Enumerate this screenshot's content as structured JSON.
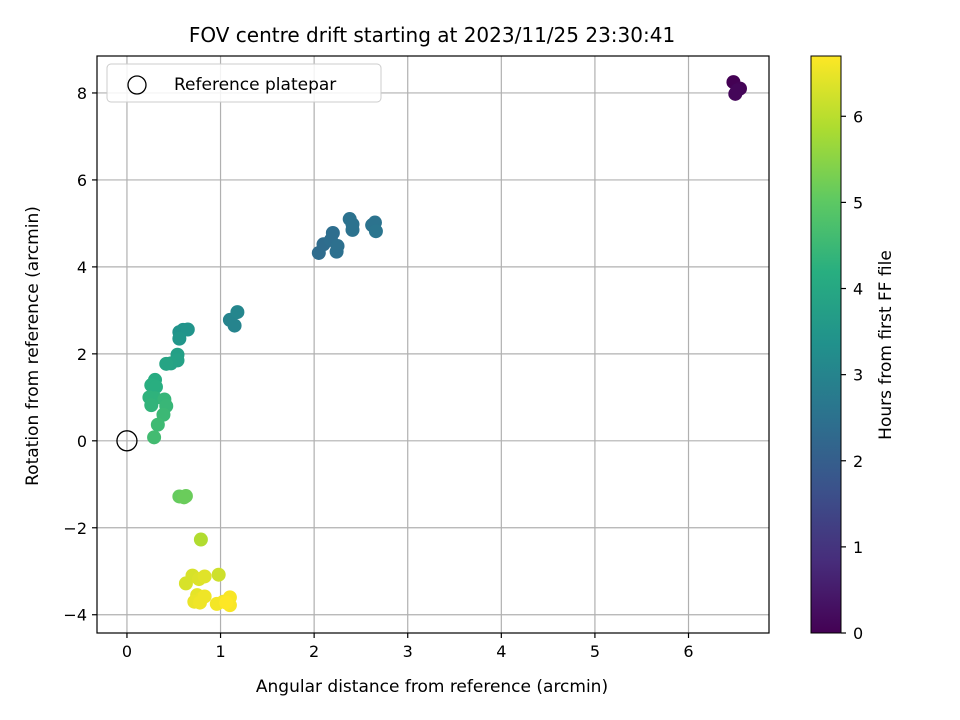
{
  "chart_data": {
    "type": "scatter",
    "title": "FOV centre drift starting at 2023/11/25 23:30:41",
    "xlabel": "Angular distance from reference (arcmin)",
    "ylabel": "Rotation from reference (arcmin)",
    "xlim": [
      -0.32,
      6.86
    ],
    "ylim": [
      -4.42,
      8.85
    ],
    "x_ticks": [
      0,
      1,
      2,
      3,
      4,
      5,
      6
    ],
    "y_ticks": [
      -4,
      -2,
      0,
      2,
      4,
      6,
      8
    ],
    "grid": true,
    "legend": {
      "position": "top-left",
      "entries": [
        "Reference platepar"
      ]
    },
    "reference_point": {
      "x": 0,
      "y": 0,
      "label": "Reference platepar"
    },
    "colorbar": {
      "label": "Hours from first FF file",
      "colormap": "viridis",
      "range": [
        0,
        6.7
      ],
      "ticks": [
        0,
        1,
        2,
        3,
        4,
        5,
        6
      ]
    },
    "points": [
      {
        "x": 6.48,
        "y": 8.25,
        "c": 0.0
      },
      {
        "x": 6.55,
        "y": 8.1,
        "c": 0.05
      },
      {
        "x": 6.5,
        "y": 7.98,
        "c": 0.1
      },
      {
        "x": 6.52,
        "y": 8.06,
        "c": 0.1
      },
      {
        "x": 2.05,
        "y": 4.32,
        "c": 2.35
      },
      {
        "x": 2.1,
        "y": 4.52,
        "c": 2.35
      },
      {
        "x": 2.18,
        "y": 4.62,
        "c": 2.4
      },
      {
        "x": 2.2,
        "y": 4.78,
        "c": 2.4
      },
      {
        "x": 2.24,
        "y": 4.35,
        "c": 2.45
      },
      {
        "x": 2.25,
        "y": 4.48,
        "c": 2.45
      },
      {
        "x": 2.38,
        "y": 5.1,
        "c": 2.5
      },
      {
        "x": 2.41,
        "y": 4.98,
        "c": 2.5
      },
      {
        "x": 2.41,
        "y": 4.85,
        "c": 2.5
      },
      {
        "x": 2.62,
        "y": 4.96,
        "c": 2.55
      },
      {
        "x": 2.65,
        "y": 5.02,
        "c": 2.55
      },
      {
        "x": 2.66,
        "y": 4.82,
        "c": 2.6
      },
      {
        "x": 1.1,
        "y": 2.78,
        "c": 3.0
      },
      {
        "x": 1.15,
        "y": 2.65,
        "c": 3.0
      },
      {
        "x": 1.18,
        "y": 2.96,
        "c": 3.05
      },
      {
        "x": 0.56,
        "y": 2.5,
        "c": 3.4
      },
      {
        "x": 0.6,
        "y": 2.55,
        "c": 3.4
      },
      {
        "x": 0.65,
        "y": 2.56,
        "c": 3.45
      },
      {
        "x": 0.56,
        "y": 2.35,
        "c": 3.5
      },
      {
        "x": 0.54,
        "y": 1.98,
        "c": 3.75
      },
      {
        "x": 0.54,
        "y": 1.85,
        "c": 3.8
      },
      {
        "x": 0.47,
        "y": 1.78,
        "c": 3.85
      },
      {
        "x": 0.42,
        "y": 1.77,
        "c": 3.9
      },
      {
        "x": 0.3,
        "y": 1.4,
        "c": 4.1
      },
      {
        "x": 0.26,
        "y": 1.28,
        "c": 4.2
      },
      {
        "x": 0.31,
        "y": 1.24,
        "c": 4.2
      },
      {
        "x": 0.24,
        "y": 1.0,
        "c": 4.3
      },
      {
        "x": 0.3,
        "y": 0.98,
        "c": 4.3
      },
      {
        "x": 0.26,
        "y": 0.82,
        "c": 4.35
      },
      {
        "x": 0.4,
        "y": 0.95,
        "c": 4.4
      },
      {
        "x": 0.42,
        "y": 0.8,
        "c": 4.45
      },
      {
        "x": 0.39,
        "y": 0.6,
        "c": 4.5
      },
      {
        "x": 0.33,
        "y": 0.37,
        "c": 4.55
      },
      {
        "x": 0.29,
        "y": 0.08,
        "c": 4.6
      },
      {
        "x": 0.56,
        "y": -1.28,
        "c": 5.1
      },
      {
        "x": 0.61,
        "y": -1.3,
        "c": 5.15
      },
      {
        "x": 0.63,
        "y": -1.27,
        "c": 5.15
      },
      {
        "x": 0.79,
        "y": -2.27,
        "c": 5.9
      },
      {
        "x": 0.98,
        "y": -3.08,
        "c": 6.2
      },
      {
        "x": 0.63,
        "y": -3.28,
        "c": 6.3
      },
      {
        "x": 0.7,
        "y": -3.1,
        "c": 6.3
      },
      {
        "x": 0.77,
        "y": -3.18,
        "c": 6.35
      },
      {
        "x": 0.83,
        "y": -3.12,
        "c": 6.4
      },
      {
        "x": 0.75,
        "y": -3.55,
        "c": 6.45
      },
      {
        "x": 0.8,
        "y": -3.62,
        "c": 6.5
      },
      {
        "x": 0.72,
        "y": -3.7,
        "c": 6.5
      },
      {
        "x": 0.78,
        "y": -3.72,
        "c": 6.55
      },
      {
        "x": 0.83,
        "y": -3.58,
        "c": 6.55
      },
      {
        "x": 0.96,
        "y": -3.75,
        "c": 6.6
      },
      {
        "x": 1.03,
        "y": -3.7,
        "c": 6.6
      },
      {
        "x": 1.1,
        "y": -3.6,
        "c": 6.65
      },
      {
        "x": 1.1,
        "y": -3.78,
        "c": 6.65
      },
      {
        "x": 1.06,
        "y": -3.72,
        "c": 6.7
      }
    ]
  }
}
